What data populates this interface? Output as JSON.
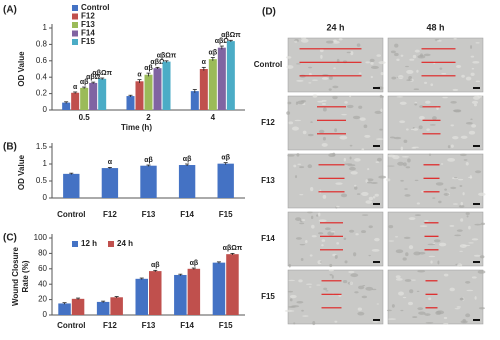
{
  "chart_data": [
    {
      "type": "bar",
      "label": "(A)",
      "y_label": "OD Value",
      "x_label": "Time (h)",
      "categories": [
        "0.5",
        "2",
        "4"
      ],
      "series": [
        {
          "name": "Control",
          "color": "#4472c4",
          "values": [
            0.09,
            0.17,
            0.23
          ],
          "errors": [
            0.01,
            0.01,
            0.02
          ],
          "significance": [
            null,
            null,
            null
          ]
        },
        {
          "name": "F12",
          "color": "#c0504d",
          "values": [
            0.21,
            0.35,
            0.5
          ],
          "errors": [
            0.01,
            0.02,
            0.02
          ],
          "significance": [
            "α",
            "α",
            "α"
          ]
        },
        {
          "name": "F13",
          "color": "#9bbb59",
          "values": [
            0.27,
            0.43,
            0.62
          ],
          "errors": [
            0.01,
            0.02,
            0.02
          ],
          "significance": [
            "αβ",
            "αβ",
            "αβ"
          ]
        },
        {
          "name": "F14",
          "color": "#8064a2",
          "values": [
            0.33,
            0.51,
            0.76
          ],
          "errors": [
            0.01,
            0.01,
            0.02
          ],
          "significance": [
            "αβΩ",
            "αβΩ",
            "αβΩ"
          ]
        },
        {
          "name": "F15",
          "color": "#4bacc6",
          "values": [
            0.38,
            0.59,
            0.84
          ],
          "errors": [
            0.01,
            0.01,
            0.01
          ],
          "significance": [
            "αβΩπ",
            "αβΩπ",
            "αβΩπ"
          ]
        }
      ],
      "ylim": [
        0,
        1
      ],
      "yticks": [
        0,
        0.2,
        0.4,
        0.6,
        0.8,
        1
      ],
      "legend": "upper left",
      "legend_ncol": 1
    },
    {
      "type": "bar",
      "label": "(B)",
      "y_label": "OD Value",
      "categories": [
        "Control",
        "F12",
        "F13",
        "F14",
        "F15"
      ],
      "values": [
        0.71,
        0.88,
        0.95,
        0.97,
        1.01
      ],
      "errors": [
        0.02,
        0.02,
        0.02,
        0.03,
        0.03
      ],
      "significance": [
        null,
        "α",
        "αβ",
        "αβ",
        "αβ"
      ],
      "color": "#4472c4",
      "ylim": [
        0,
        1.5
      ],
      "yticks": [
        0,
        0.5,
        1,
        1.5
      ]
    },
    {
      "type": "bar",
      "label": "(C)",
      "y_label": [
        "Wound Closure",
        "Rate (%)"
      ],
      "categories": [
        "Control",
        "F12",
        "F13",
        "F14",
        "F15"
      ],
      "series": [
        {
          "name": "12 h",
          "color": "#4472c4",
          "values": [
            15,
            17,
            47,
            52,
            68
          ],
          "errors": [
            1,
            1,
            1,
            1,
            1
          ],
          "significance": [
            null,
            null,
            null,
            null,
            null
          ]
        },
        {
          "name": "24 h",
          "color": "#c0504d",
          "values": [
            21,
            23,
            57,
            60,
            79
          ],
          "errors": [
            1,
            1,
            1,
            1,
            1
          ],
          "significance": [
            null,
            null,
            "αβ",
            "αβ",
            "αβΩπ"
          ]
        }
      ],
      "ylim": [
        0,
        100
      ],
      "yticks": [
        0,
        20,
        40,
        60,
        80,
        100
      ],
      "legend": "upper left",
      "legend_ncol": 2
    }
  ],
  "micrographs": {
    "label": "(D)",
    "columns": [
      "24 h",
      "48 h"
    ],
    "rows": [
      "Control",
      "F12",
      "F13",
      "F14",
      "F15"
    ]
  }
}
